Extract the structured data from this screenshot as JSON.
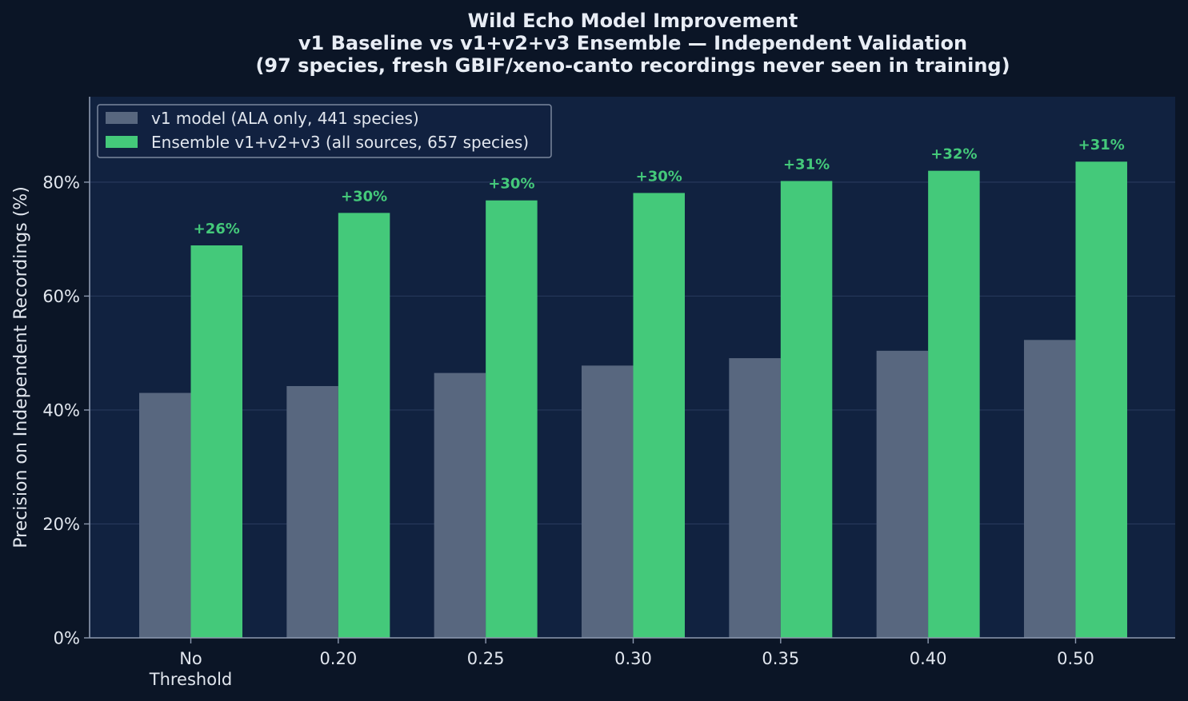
{
  "chart_data": {
    "type": "bar",
    "title_lines": [
      "Wild Echo Model Improvement",
      "v1 Baseline vs v1+v2+v3 Ensemble — Independent Validation",
      "(97 species, fresh GBIF/xeno-canto recordings never seen in training)"
    ],
    "xlabel": "",
    "ylabel": "Precision on Independent Recordings (%)",
    "categories": [
      [
        "No",
        "Threshold"
      ],
      [
        "0.20"
      ],
      [
        "0.25"
      ],
      [
        "0.30"
      ],
      [
        "0.35"
      ],
      [
        "0.40"
      ],
      [
        "0.50"
      ]
    ],
    "series": [
      {
        "name": "v1 model (ALA only, 441 species)",
        "color": "#58677f",
        "values": [
          43,
          44.2,
          46.5,
          47.8,
          49.1,
          50.4,
          52.3
        ]
      },
      {
        "name": "Ensemble v1+v2+v3 (all sources, 657 species)",
        "color": "#44c97a",
        "values": [
          68.9,
          74.6,
          76.8,
          78.1,
          80.2,
          82.0,
          83.6
        ]
      }
    ],
    "bar_labels": [
      "+26%",
      "+30%",
      "+30%",
      "+30%",
      "+31%",
      "+32%",
      "+31%"
    ],
    "bar_label_color": "#44c97a",
    "yticks": [
      0,
      20,
      40,
      60,
      80
    ],
    "ytick_labels": [
      "0%",
      "20%",
      "40%",
      "60%",
      "80%"
    ],
    "ylim": [
      0,
      95
    ],
    "grid": "horizontal",
    "legend_position": "top-left",
    "colors": {
      "background": "#0b1526",
      "plot_background": "#112240",
      "grid": "#26385a",
      "axis": "#8e9ab0",
      "text": "#e1e6ee"
    }
  }
}
